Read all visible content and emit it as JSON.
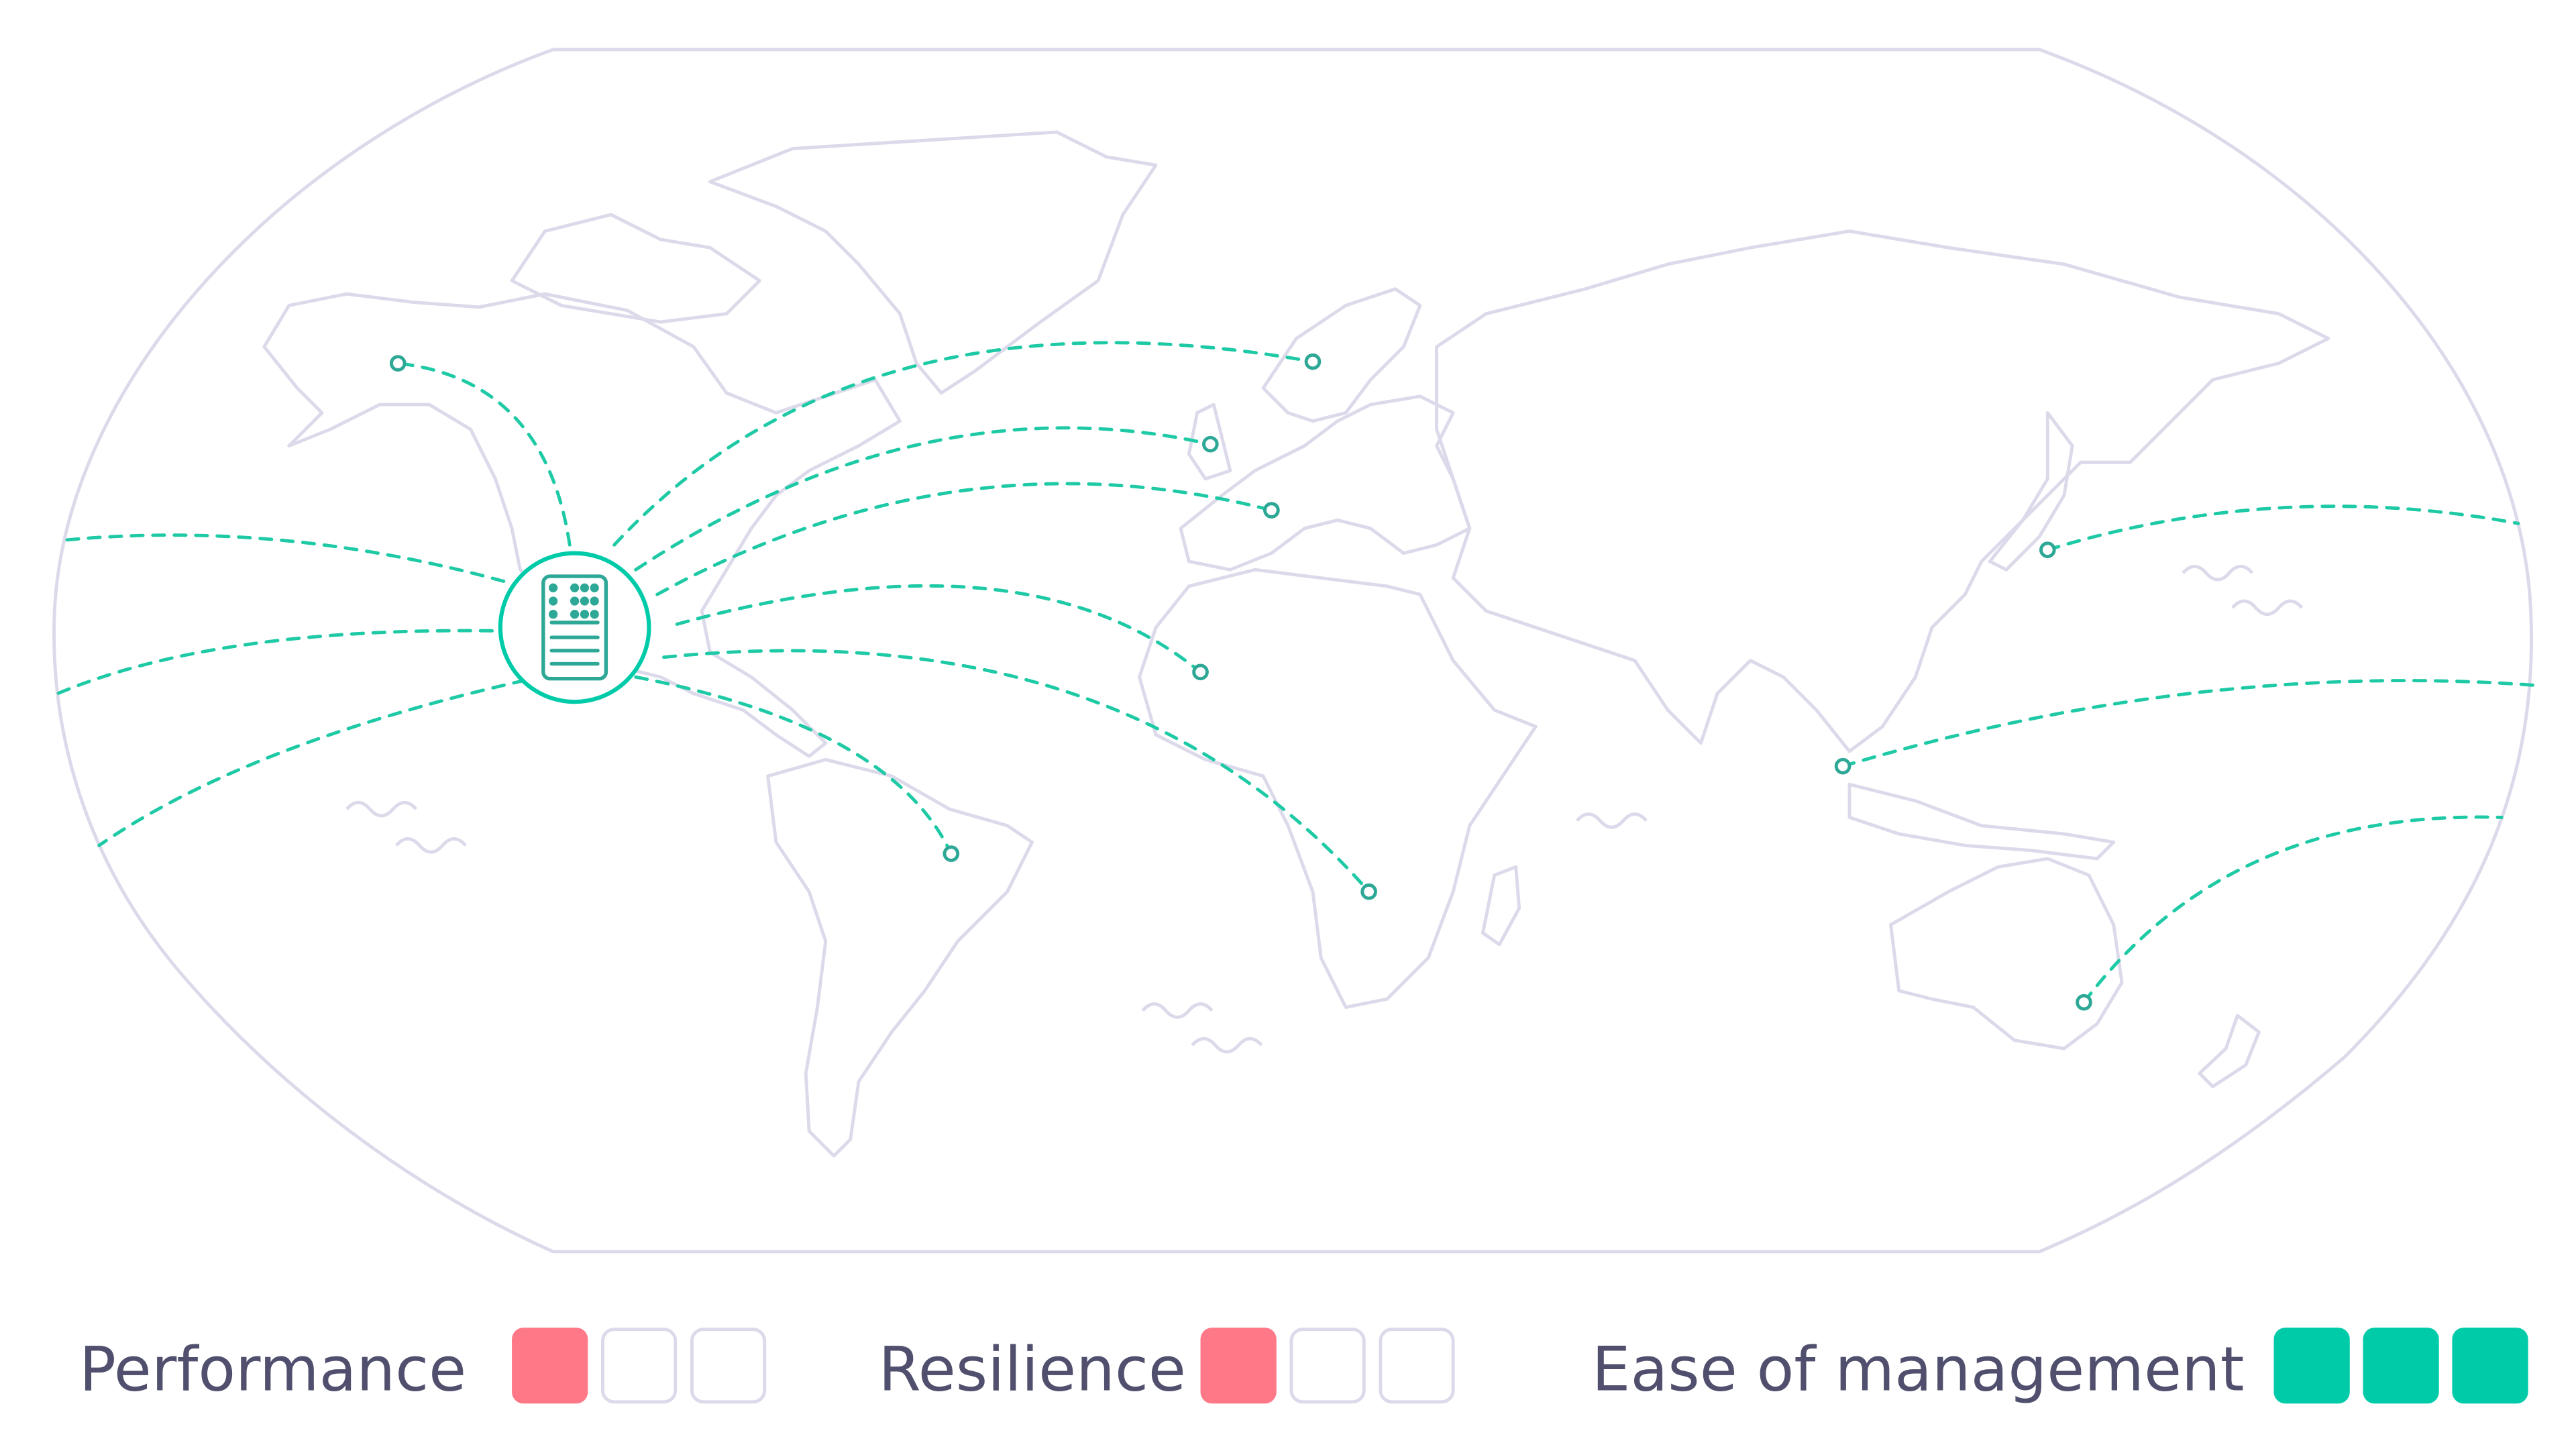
{
  "colors": {
    "map_outline": "#dcdaea",
    "route": "#1ec9a5",
    "server_ring": "#00cba9",
    "server_icon": "#2ea896",
    "legend_text": "#50506e",
    "rating_low": "#ff7888",
    "rating_high": "#00cba9",
    "rating_empty": "#dcdaea"
  },
  "map": {
    "hub_icon": "server-icon",
    "destinations": [
      "alaska",
      "scandinavia",
      "uk",
      "mediterranean",
      "west-africa",
      "southern-africa",
      "brazil",
      "japan",
      "southeast-asia",
      "australia",
      "west-edge-1",
      "west-edge-2",
      "west-edge-3"
    ]
  },
  "legend": [
    {
      "label": "Performance",
      "rating": 1,
      "max": 3
    },
    {
      "label": "Resilience",
      "rating": 1,
      "max": 3
    },
    {
      "label": "Ease of management",
      "rating": 3,
      "max": 3
    }
  ]
}
